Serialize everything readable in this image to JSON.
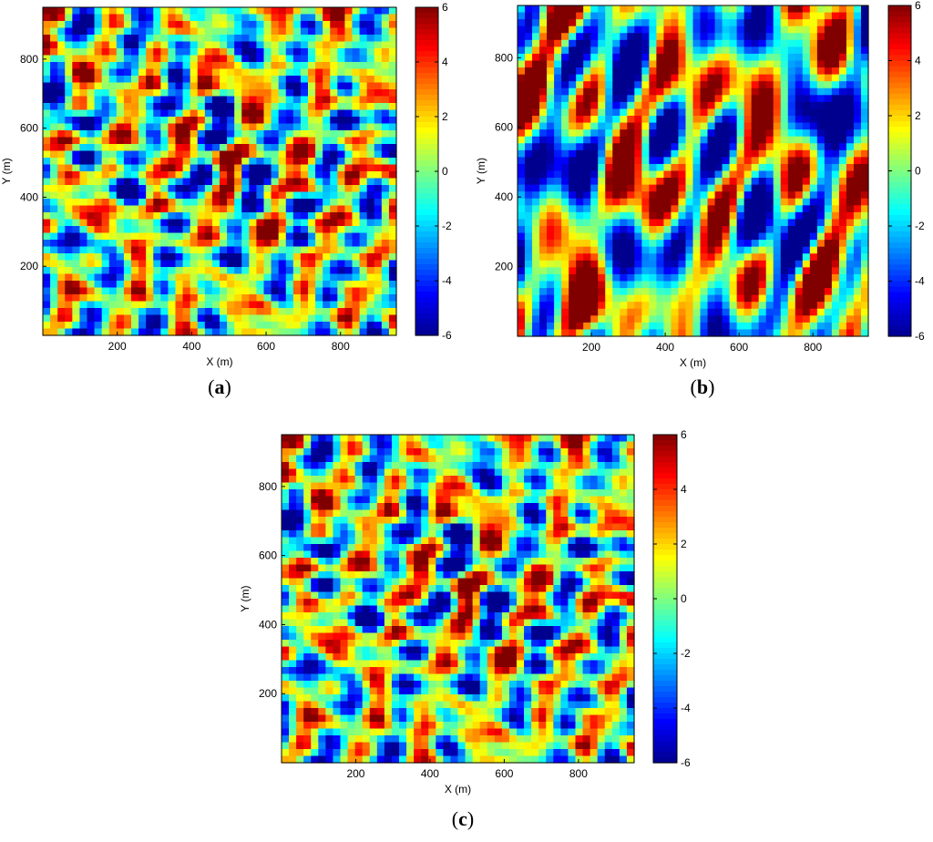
{
  "panels": [
    {
      "id": "a",
      "caption_text": "(a)",
      "label_letter": "a"
    },
    {
      "id": "b",
      "caption_text": "(b)",
      "label_letter": "b"
    },
    {
      "id": "c",
      "caption_text": "(c)",
      "label_letter": "c"
    }
  ],
  "colorbar": {
    "min": -6,
    "max": 6,
    "ticks": [
      6,
      4,
      2,
      0,
      -2,
      -4,
      -6
    ],
    "tick_labels": [
      "6",
      "4",
      "2",
      "0",
      "-2",
      "-4",
      "-6"
    ],
    "colormap": "jet",
    "jet_stops": [
      "#00008f",
      "#0000ff",
      "#0080ff",
      "#00ffff",
      "#80ff80",
      "#ffff00",
      "#ff8000",
      "#ff0000",
      "#800000"
    ]
  },
  "chart_data": [
    {
      "type": "heatmap",
      "panel": "a",
      "title": "",
      "xlabel": "X (m)",
      "ylabel": "Y (m)",
      "xlim": [
        0,
        950
      ],
      "ylim": [
        0,
        950
      ],
      "xticks": [
        200,
        400,
        600,
        800
      ],
      "yticks": [
        200,
        400,
        600,
        800
      ],
      "xtick_labels": [
        "200",
        "400",
        "600",
        "800"
      ],
      "ytick_labels": [
        "200",
        "400",
        "600",
        "800"
      ],
      "value_range": [
        -6,
        6
      ],
      "colorbar_ticks": [
        -6,
        -4,
        -2,
        0,
        2,
        4,
        6
      ],
      "field_description": "oblique banded random field of alternating positive and negative anomalies"
    },
    {
      "type": "heatmap",
      "panel": "b",
      "title": "",
      "xlabel": "X (m)",
      "ylabel": "Y (m)",
      "xlim": [
        0,
        950
      ],
      "ylim": [
        0,
        950
      ],
      "xticks": [
        200,
        400,
        600,
        800
      ],
      "yticks": [
        200,
        400,
        600,
        800
      ],
      "xtick_labels": [
        "200",
        "400",
        "600",
        "800"
      ],
      "ytick_labels": [
        "200",
        "400",
        "600",
        "800"
      ],
      "value_range": [
        -6,
        6
      ],
      "colorbar_ticks": [
        -6,
        -4,
        -2,
        0,
        2,
        4,
        6
      ],
      "field_description": "smoother field with larger blob-like anomalies"
    },
    {
      "type": "heatmap",
      "panel": "c",
      "title": "",
      "xlabel": "X (m)",
      "ylabel": "Y (m)",
      "xlim": [
        0,
        950
      ],
      "ylim": [
        0,
        950
      ],
      "xticks": [
        200,
        400,
        600,
        800
      ],
      "yticks": [
        200,
        400,
        600,
        800
      ],
      "xtick_labels": [
        "200",
        "400",
        "600",
        "800"
      ],
      "ytick_labels": [
        "200",
        "400",
        "600",
        "800"
      ],
      "value_range": [
        -6,
        6
      ],
      "colorbar_ticks": [
        -6,
        -4,
        -2,
        0,
        2,
        4,
        6
      ],
      "field_description": "oblique banded random field similar to (a)"
    }
  ]
}
